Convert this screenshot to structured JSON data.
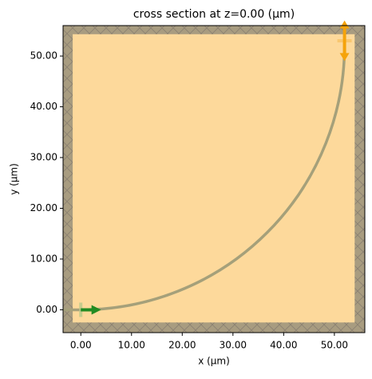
{
  "chart_data": {
    "type": "simulation",
    "title": "cross section at z=0.00 (μm)",
    "x_label": "x (μm)",
    "y_label": "y (μm)",
    "xlim": [
      -3.5,
      56
    ],
    "ylim": [
      -4.5,
      56
    ],
    "xticks": [
      {
        "value": 0,
        "label": "0.00"
      },
      {
        "value": 10,
        "label": "10.00"
      },
      {
        "value": 20,
        "label": "20.00"
      },
      {
        "value": 30,
        "label": "30.00"
      },
      {
        "value": 40,
        "label": "40.00"
      },
      {
        "value": 50,
        "label": "50.00"
      }
    ],
    "yticks": [
      {
        "value": 0,
        "label": "0.00"
      },
      {
        "value": 10,
        "label": "10.00"
      },
      {
        "value": 20,
        "label": "20.00"
      },
      {
        "value": 30,
        "label": "30.00"
      },
      {
        "value": 40,
        "label": "40.00"
      },
      {
        "value": 50,
        "label": "50.00"
      }
    ],
    "pml_color": "#a89c80",
    "domain": {
      "x": [
        -1.6,
        54
      ],
      "y": [
        -2.5,
        54.3
      ],
      "color": "#fdd99b"
    },
    "waveguide": {
      "start": [
        -3.5,
        0
      ],
      "bend_radius": 52,
      "end": [
        52,
        56
      ],
      "color": "#a5a07a"
    },
    "source": {
      "x": 0,
      "y": 0,
      "length": 4,
      "color": "#228b22"
    },
    "monitor": {
      "x": 52,
      "y": 53,
      "length": 4,
      "color": "#f5a30a"
    }
  }
}
